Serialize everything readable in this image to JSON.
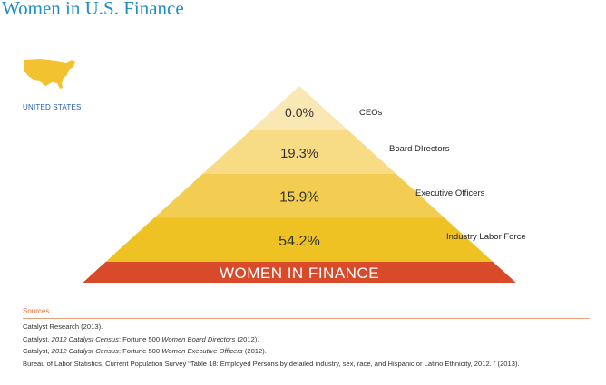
{
  "page": {
    "title": "Women in U.S. Finance",
    "region_label": "UNITED STATES",
    "map_icon": "us-map-icon",
    "colors": {
      "title": "#1f8fc4",
      "map": "#f2c230",
      "base_band": "#d94a2a",
      "base_text": "#ffffff",
      "level_fills": [
        "#f9e7b4",
        "#f7db85",
        "#f3cd52",
        "#eec223"
      ]
    }
  },
  "chart_data": {
    "type": "pyramid",
    "title": "Women in U.S. Finance",
    "base_label": "WOMEN IN FINANCE",
    "levels": [
      {
        "label": "CEOs",
        "value": 0.0,
        "display": "0.0%"
      },
      {
        "label": "Board DIrectors",
        "value": 19.3,
        "display": "19.3%"
      },
      {
        "label": "Executive Officers",
        "value": 15.9,
        "display": "15.9%"
      },
      {
        "label": "Industry Labor Force",
        "value": 54.2,
        "display": "54.2%"
      }
    ]
  },
  "sources": {
    "heading": "Sources",
    "items": [
      {
        "pre": "Catalyst Research (2013).",
        "em": "",
        "post": ""
      },
      {
        "pre": "Catalyst, ",
        "em": "2012 Catalyst Census",
        "post": ": Fortune 500 "
      },
      {
        "pre": "Catalyst, ",
        "em": "2012 Catalyst Census",
        "post": ": Fortune 500 "
      },
      {
        "pre": "Bureau of Labor Statistics, Current Population Survey “Table 18: Employed Persons by detailed industry, sex, race, and Hispanic or Latino Ethnicity, 2012. ” (2013).",
        "em": "",
        "post": ""
      }
    ],
    "item_tails": [
      {
        "em": "",
        "post": ""
      },
      {
        "em": "Women Board Directors",
        "post": " (2012)."
      },
      {
        "em": "Women Executive Officers",
        "post": " (2012)."
      },
      {
        "em": "",
        "post": ""
      }
    ]
  }
}
